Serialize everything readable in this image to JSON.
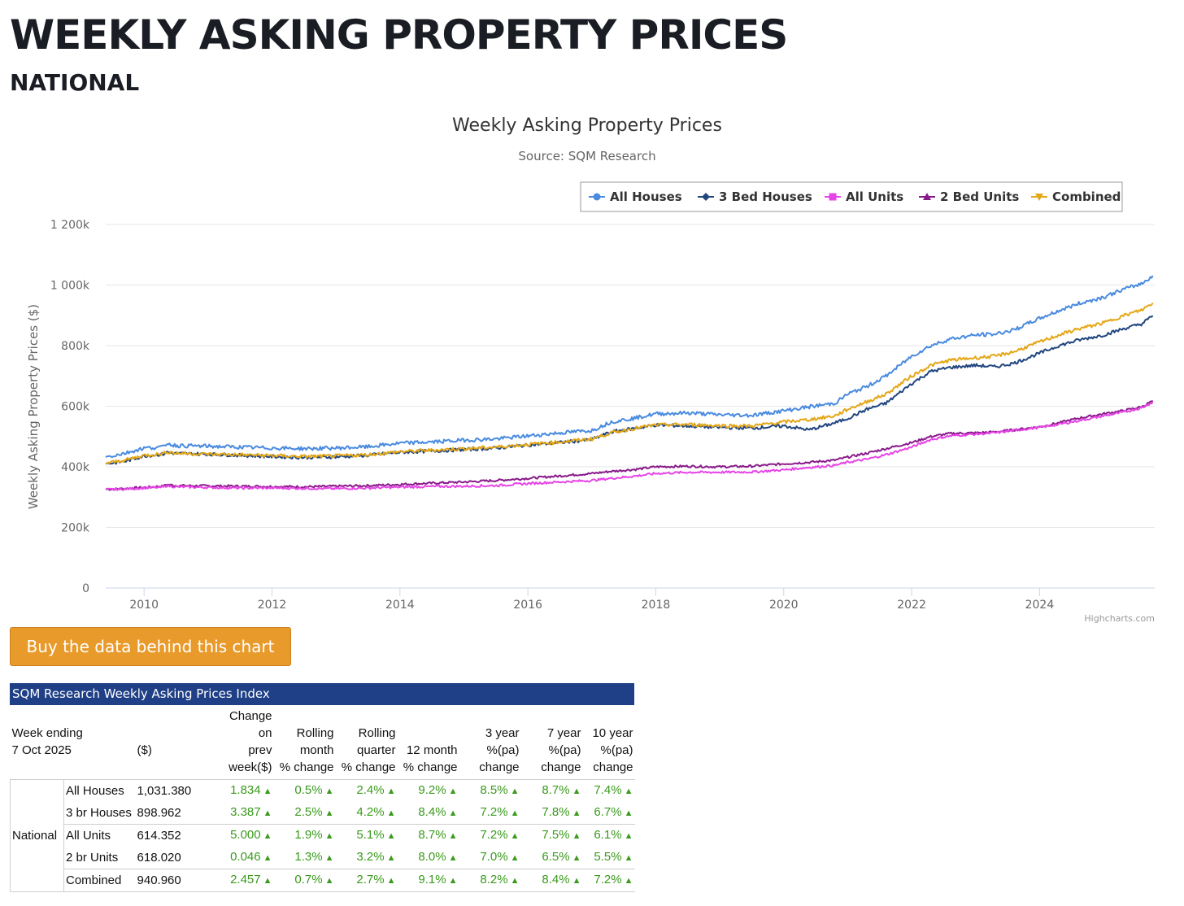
{
  "page": {
    "heading": "WEEKLY ASKING PROPERTY PRICES",
    "subheading": "NATIONAL",
    "buy_button": "Buy the data behind this chart"
  },
  "colors": {
    "all_houses": "#4a8be0",
    "bed3_houses": "#21467f",
    "all_units": "#e645e6",
    "bed2_units": "#8a1a8a",
    "combined": "#e4a718",
    "grid": "#e6e6e6",
    "axis": "#ccd6eb"
  },
  "chart_data": {
    "type": "line",
    "title": "Weekly Asking Property Prices",
    "subtitle": "Source: SQM Research",
    "ylabel": "Weekly Asking Property Prices ($)",
    "xlabel": "",
    "credit": "Highcharts.com",
    "legend_position": "top-right",
    "ylim": [
      0,
      1200000
    ],
    "xlim": [
      2009.4,
      2025.8
    ],
    "y_ticks": [
      0,
      200000,
      400000,
      600000,
      800000,
      1000000,
      1200000
    ],
    "y_tick_labels": [
      "0",
      "200k",
      "400k",
      "600k",
      "800k",
      "1 000k",
      "1 200k"
    ],
    "x_ticks": [
      2010,
      2012,
      2014,
      2016,
      2018,
      2020,
      2022,
      2024
    ],
    "x_tick_labels": [
      "2010",
      "2012",
      "2014",
      "2016",
      "2018",
      "2020",
      "2022",
      "2024"
    ],
    "series": [
      {
        "name": "All Houses",
        "color_key": "all_houses",
        "marker": "circle",
        "x": [
          2009.4,
          2009.7,
          2010.0,
          2010.3,
          2010.35,
          2010.5,
          2011.0,
          2011.5,
          2012.0,
          2012.5,
          2013.0,
          2013.5,
          2014.0,
          2014.5,
          2015.0,
          2015.5,
          2016.0,
          2016.5,
          2017.0,
          2017.3,
          2017.7,
          2018.0,
          2018.5,
          2019.0,
          2019.5,
          2020.0,
          2020.4,
          2020.8,
          2021.0,
          2021.3,
          2021.6,
          2022.0,
          2022.3,
          2022.6,
          2023.0,
          2023.3,
          2023.6,
          2024.0,
          2024.3,
          2024.6,
          2025.0,
          2025.3,
          2025.6,
          2025.77
        ],
        "values": [
          432000,
          445000,
          462000,
          465000,
          478000,
          470000,
          468000,
          465000,
          462000,
          460000,
          462000,
          466000,
          478000,
          482000,
          488000,
          492000,
          502000,
          512000,
          520000,
          548000,
          562000,
          575000,
          578000,
          572000,
          570000,
          585000,
          598000,
          610000,
          640000,
          665000,
          700000,
          765000,
          800000,
          822000,
          835000,
          838000,
          852000,
          890000,
          915000,
          938000,
          960000,
          985000,
          1005000,
          1031000
        ]
      },
      {
        "name": "3 Bed Houses",
        "color_key": "bed3_houses",
        "marker": "diamond",
        "x": [
          2009.4,
          2009.7,
          2010.0,
          2010.3,
          2010.35,
          2010.5,
          2011.0,
          2011.5,
          2012.0,
          2012.5,
          2013.0,
          2013.5,
          2014.0,
          2014.5,
          2015.0,
          2015.5,
          2016.0,
          2016.5,
          2017.0,
          2017.3,
          2017.7,
          2018.0,
          2018.5,
          2019.0,
          2019.5,
          2020.0,
          2020.4,
          2020.8,
          2021.0,
          2021.3,
          2021.6,
          2022.0,
          2022.3,
          2022.6,
          2023.0,
          2023.3,
          2023.6,
          2024.0,
          2024.3,
          2024.6,
          2025.0,
          2025.3,
          2025.6,
          2025.77
        ],
        "values": [
          410000,
          418000,
          436000,
          442000,
          448000,
          444000,
          442000,
          438000,
          434000,
          431000,
          433000,
          438000,
          448000,
          452000,
          457000,
          462000,
          472000,
          480000,
          490000,
          515000,
          528000,
          538000,
          535000,
          530000,
          528000,
          535000,
          522000,
          545000,
          560000,
          590000,
          610000,
          675000,
          715000,
          728000,
          735000,
          730000,
          742000,
          775000,
          800000,
          818000,
          835000,
          855000,
          872000,
          899000
        ]
      },
      {
        "name": "All Units",
        "color_key": "all_units",
        "marker": "square",
        "x": [
          2009.4,
          2009.7,
          2010.0,
          2010.3,
          2010.35,
          2010.5,
          2011.0,
          2011.5,
          2012.0,
          2012.5,
          2013.0,
          2013.5,
          2014.0,
          2014.5,
          2015.0,
          2015.5,
          2016.0,
          2016.5,
          2017.0,
          2017.3,
          2017.7,
          2018.0,
          2018.5,
          2019.0,
          2019.5,
          2020.0,
          2020.4,
          2020.8,
          2021.0,
          2021.3,
          2021.6,
          2022.0,
          2022.3,
          2022.6,
          2023.0,
          2023.3,
          2023.6,
          2024.0,
          2024.3,
          2024.6,
          2025.0,
          2025.3,
          2025.6,
          2025.77
        ],
        "values": [
          325000,
          327000,
          330000,
          333000,
          338000,
          334000,
          332000,
          330000,
          330000,
          329000,
          328000,
          330000,
          333000,
          335000,
          336000,
          338000,
          345000,
          350000,
          355000,
          362000,
          370000,
          378000,
          382000,
          382000,
          383000,
          390000,
          398000,
          405000,
          415000,
          425000,
          440000,
          465000,
          490000,
          502000,
          508000,
          512000,
          520000,
          530000,
          540000,
          552000,
          568000,
          580000,
          595000,
          614000
        ]
      },
      {
        "name": "2 Bed Units",
        "color_key": "bed2_units",
        "marker": "triangle",
        "x": [
          2009.4,
          2009.7,
          2010.0,
          2010.3,
          2010.35,
          2010.5,
          2011.0,
          2011.5,
          2012.0,
          2012.5,
          2013.0,
          2013.5,
          2014.0,
          2014.5,
          2015.0,
          2015.5,
          2016.0,
          2016.5,
          2017.0,
          2017.3,
          2017.7,
          2018.0,
          2018.5,
          2019.0,
          2019.5,
          2020.0,
          2020.4,
          2020.8,
          2021.0,
          2021.3,
          2021.6,
          2022.0,
          2022.3,
          2022.6,
          2023.0,
          2023.3,
          2023.6,
          2024.0,
          2024.3,
          2024.6,
          2025.0,
          2025.3,
          2025.6,
          2025.77
        ],
        "values": [
          326000,
          328000,
          332000,
          336000,
          342000,
          338000,
          337000,
          336000,
          335000,
          334000,
          336000,
          338000,
          342000,
          346000,
          350000,
          355000,
          362000,
          370000,
          378000,
          385000,
          392000,
          400000,
          402000,
          400000,
          402000,
          410000,
          415000,
          422000,
          432000,
          445000,
          460000,
          480000,
          500000,
          510000,
          512000,
          515000,
          522000,
          532000,
          545000,
          560000,
          575000,
          585000,
          598000,
          618000
        ]
      },
      {
        "name": "Combined",
        "color_key": "combined",
        "marker": "triangle-down",
        "x": [
          2009.4,
          2009.7,
          2010.0,
          2010.3,
          2010.35,
          2010.5,
          2011.0,
          2011.5,
          2012.0,
          2012.5,
          2013.0,
          2013.5,
          2014.0,
          2014.5,
          2015.0,
          2015.5,
          2016.0,
          2016.5,
          2017.0,
          2017.3,
          2017.7,
          2018.0,
          2018.5,
          2019.0,
          2019.5,
          2020.0,
          2020.4,
          2020.8,
          2021.0,
          2021.3,
          2021.6,
          2022.0,
          2022.3,
          2022.6,
          2023.0,
          2023.3,
          2023.6,
          2024.0,
          2024.3,
          2024.6,
          2025.0,
          2025.3,
          2025.6,
          2025.77
        ],
        "values": [
          412000,
          422000,
          438000,
          443000,
          450000,
          445000,
          442000,
          440000,
          437000,
          434000,
          436000,
          440000,
          450000,
          455000,
          460000,
          465000,
          474000,
          482000,
          492000,
          512000,
          528000,
          538000,
          540000,
          536000,
          535000,
          548000,
          556000,
          568000,
          590000,
          615000,
          640000,
          700000,
          735000,
          752000,
          760000,
          765000,
          780000,
          812000,
          835000,
          855000,
          875000,
          898000,
          918000,
          941000
        ]
      }
    ]
  },
  "table": {
    "title": "SQM Research Weekly Asking Prices Index",
    "head": {
      "col0": [
        "Week ending",
        "7 Oct 2025"
      ],
      "col1": "($)",
      "col2": [
        "Change",
        "on",
        "prev",
        "week($)"
      ],
      "col3": [
        "Rolling",
        "month",
        "% change"
      ],
      "col4": [
        "Rolling",
        "quarter",
        "% change"
      ],
      "col5": [
        "12 month",
        "% change"
      ],
      "col6": [
        "3 year",
        "%(pa)",
        "change"
      ],
      "col7": [
        "7 year",
        "%(pa)",
        "change"
      ],
      "col8": [
        "10 year",
        "%(pa)",
        "change"
      ]
    },
    "region": "National",
    "up_arrow": "▲",
    "rows": [
      {
        "type": "All Houses",
        "price": "1,031.380",
        "week": "1.834",
        "month": "0.5%",
        "quarter": "2.4%",
        "year": "9.2%",
        "y3": "8.5%",
        "y7": "8.7%",
        "y10": "7.4%"
      },
      {
        "type": "3 br Houses",
        "price": "898.962",
        "week": "3.387",
        "month": "2.5%",
        "quarter": "4.2%",
        "year": "8.4%",
        "y3": "7.2%",
        "y7": "7.8%",
        "y10": "6.7%"
      },
      {
        "type": "All Units",
        "price": "614.352",
        "week": "5.000",
        "month": "1.9%",
        "quarter": "5.1%",
        "year": "8.7%",
        "y3": "7.2%",
        "y7": "7.5%",
        "y10": "6.1%"
      },
      {
        "type": "2 br Units",
        "price": "618.020",
        "week": "0.046",
        "month": "1.3%",
        "quarter": "3.2%",
        "year": "8.0%",
        "y3": "7.0%",
        "y7": "6.5%",
        "y10": "5.5%"
      },
      {
        "type": "Combined",
        "price": "940.960",
        "week": "2.457",
        "month": "0.7%",
        "quarter": "2.7%",
        "year": "9.1%",
        "y3": "8.2%",
        "y7": "8.4%",
        "y10": "7.2%"
      }
    ]
  }
}
